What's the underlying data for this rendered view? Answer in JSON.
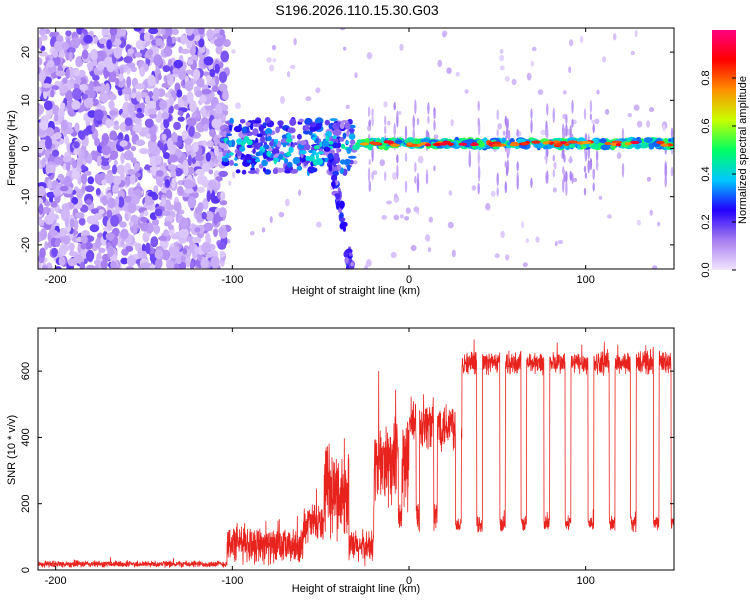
{
  "title": "S196.2026.110.15.30.G03",
  "chart_data": [
    {
      "type": "heatmap",
      "xlabel": "Height of straight line (km)",
      "ylabel": "Frequency (Hz)",
      "xlim": [
        -210,
        150
      ],
      "ylim": [
        -25,
        25
      ],
      "xticks": [
        -200,
        -100,
        0,
        100
      ],
      "yticks": [
        -20,
        -10,
        0,
        10,
        20
      ],
      "colorbar": {
        "label": "Normalized spectral amplitude",
        "range": [
          0,
          1
        ],
        "ticks": [
          "0.0",
          "0.2",
          "0.4",
          "0.6",
          "0.8"
        ],
        "colors": [
          "#f2e6ff",
          "#a67cf0",
          "#2200ff",
          "#00c8ff",
          "#00ff60",
          "#c8ff00",
          "#ff9000",
          "#ff0000",
          "#ff0080"
        ]
      },
      "regions": [
        {
          "name": "noise",
          "x": [
            -210,
            -103
          ],
          "y": [
            -25,
            25
          ]
        },
        {
          "name": "chaotic",
          "x": [
            -105,
            -30
          ],
          "y": [
            -5,
            6
          ]
        },
        {
          "name": "descending-branch",
          "x": [
            -45,
            -32
          ],
          "y": [
            -25,
            0
          ]
        },
        {
          "name": "carrier-line",
          "x": [
            -30,
            150
          ],
          "y": [
            0,
            2
          ]
        }
      ]
    },
    {
      "type": "line",
      "xlabel": "Height of straight line (km)",
      "ylabel": "SNR (10 * v/v)",
      "xlim": [
        -210,
        150
      ],
      "ylim": [
        0,
        730
      ],
      "xticks": [
        -200,
        -100,
        0,
        100
      ],
      "yticks": [
        0,
        200,
        400,
        600
      ],
      "color": "#e8231e",
      "segments": [
        {
          "x": [
            -210,
            -103
          ],
          "level": 18,
          "noise": 12
        },
        {
          "x": [
            -103,
            -80
          ],
          "level": 80,
          "noise": 70
        },
        {
          "x": [
            -80,
            -60
          ],
          "level": 70,
          "noise": 60
        },
        {
          "x": [
            -60,
            -48
          ],
          "level": 140,
          "noise": 70
        },
        {
          "x": [
            -48,
            -34
          ],
          "level": 230,
          "noise": 150
        },
        {
          "x": [
            -34,
            -20
          ],
          "level": 70,
          "noise": 60
        },
        {
          "x": [
            -20,
            0
          ],
          "level": 320,
          "noise": 160
        },
        {
          "x": [
            0,
            30
          ],
          "level": 440,
          "noise": 90
        },
        {
          "x": [
            30,
            150
          ],
          "level": 625,
          "noise": 40
        }
      ],
      "dips": [
        -5,
        5,
        15,
        28,
        40,
        53,
        65,
        78,
        90,
        103,
        115,
        127,
        140,
        150
      ],
      "dip_level": 140
    }
  ]
}
